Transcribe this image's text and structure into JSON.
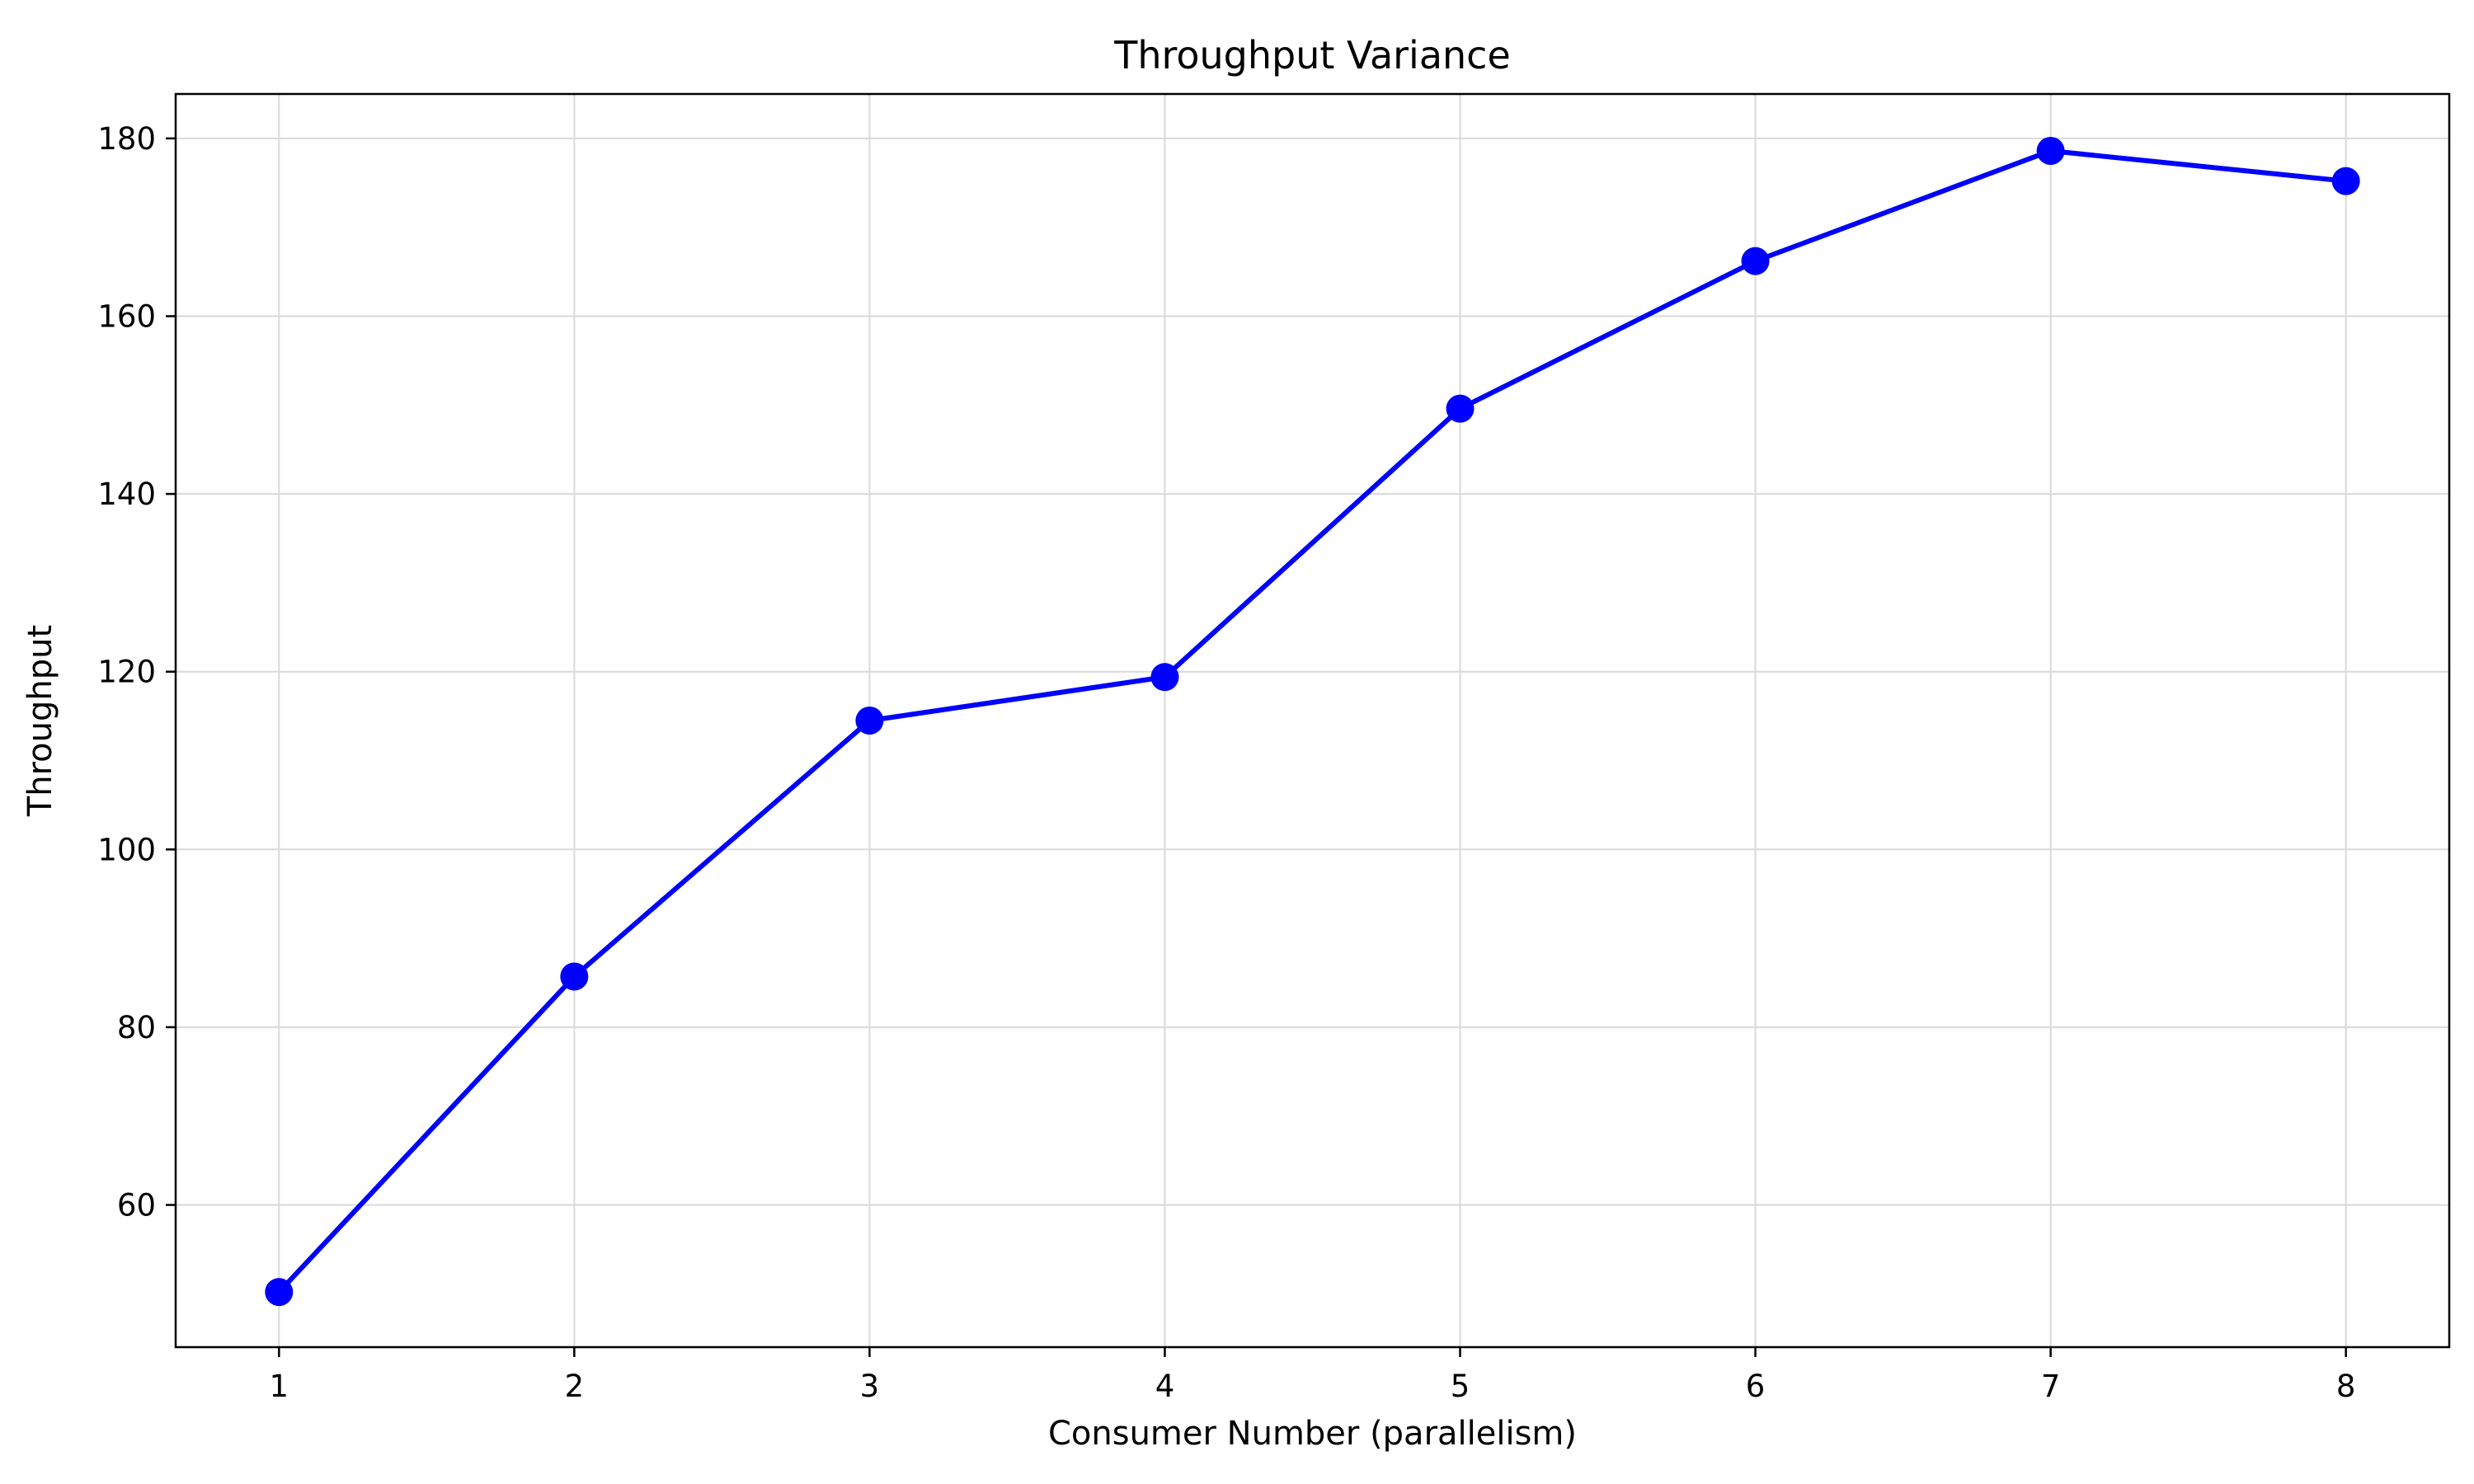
{
  "chart_data": {
    "type": "line",
    "title": "Throughput Variance",
    "xlabel": "Consumer Number (parallelism)",
    "ylabel": "Throughput",
    "x": [
      1,
      2,
      3,
      4,
      5,
      6,
      7,
      8
    ],
    "series": [
      {
        "name": "Throughput",
        "color": "#0000ff",
        "values": [
          50.2,
          85.7,
          114.5,
          119.4,
          149.6,
          166.2,
          178.6,
          175.2
        ]
      }
    ],
    "xlim": [
      0.65,
      8.35
    ],
    "ylim": [
      44,
      185
    ],
    "xticks": [
      1,
      2,
      3,
      4,
      5,
      6,
      7,
      8
    ],
    "yticks": [
      60,
      80,
      100,
      120,
      140,
      160,
      180
    ],
    "grid": true,
    "legend": "none"
  }
}
